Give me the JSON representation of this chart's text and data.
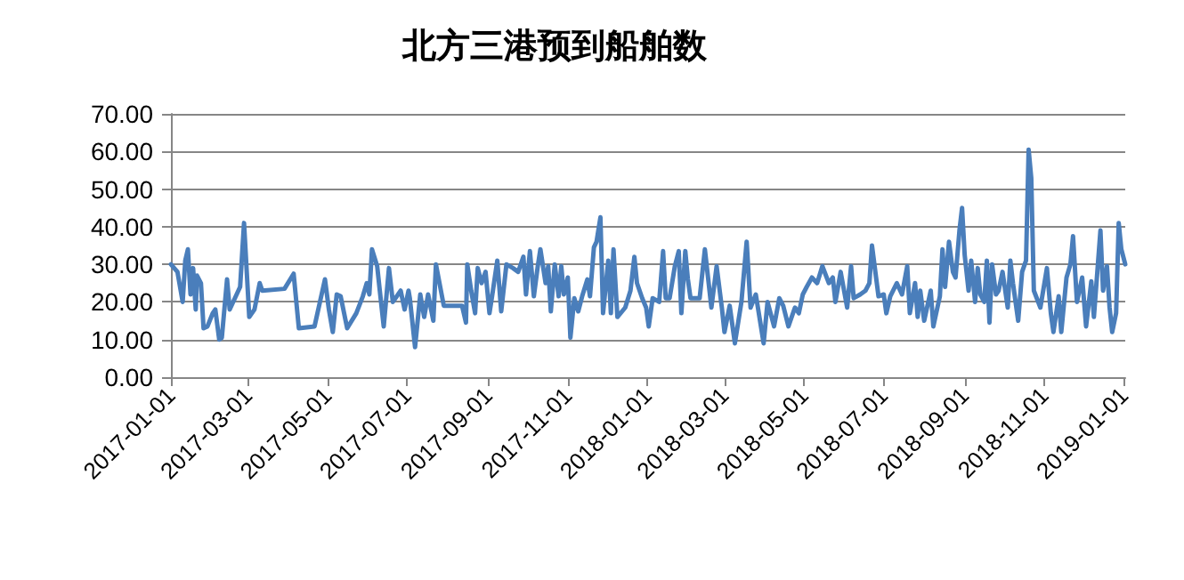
{
  "chart_data": {
    "type": "line",
    "title": "北方三港预到船舶数",
    "color": "#4a7ebb",
    "marker": "none",
    "line_style": "solid",
    "grid": "y",
    "x": [
      "2017-01-01",
      "2017-01-06",
      "2017-01-10",
      "2017-01-12",
      "2017-01-14",
      "2017-01-16",
      "2017-01-18",
      "2017-01-20",
      "2017-01-21",
      "2017-01-24",
      "2017-01-26",
      "2017-01-29",
      "2017-02-02",
      "2017-02-04",
      "2017-02-07",
      "2017-02-09",
      "2017-02-13",
      "2017-02-15",
      "2017-02-19",
      "2017-02-23",
      "2017-02-26",
      "2017-03-02",
      "2017-03-06",
      "2017-03-10",
      "2017-03-12",
      "2017-03-29",
      "2017-04-05",
      "2017-04-09",
      "2017-04-21",
      "2017-04-29",
      "2017-05-02",
      "2017-05-05",
      "2017-05-08",
      "2017-05-11",
      "2017-05-16",
      "2017-05-23",
      "2017-05-28",
      "2017-05-31",
      "2017-06-02",
      "2017-06-04",
      "2017-06-08",
      "2017-06-10",
      "2017-06-13",
      "2017-06-17",
      "2017-06-20",
      "2017-06-26",
      "2017-06-29",
      "2017-07-02",
      "2017-07-03",
      "2017-07-07",
      "2017-07-11",
      "2017-07-14",
      "2017-07-17",
      "2017-07-21",
      "2017-07-23",
      "2017-07-29",
      "2017-08-12",
      "2017-08-15",
      "2017-08-16",
      "2017-08-19",
      "2017-08-22",
      "2017-08-24",
      "2017-08-27",
      "2017-08-30",
      "2017-09-02",
      "2017-09-04",
      "2017-09-08",
      "2017-09-11",
      "2017-09-15",
      "2017-09-20",
      "2017-09-24",
      "2017-09-28",
      "2017-09-30",
      "2017-10-03",
      "2017-10-06",
      "2017-10-09",
      "2017-10-11",
      "2017-10-15",
      "2017-10-17",
      "2017-10-19",
      "2017-10-22",
      "2017-10-25",
      "2017-10-27",
      "2017-10-29",
      "2017-11-01",
      "2017-11-03",
      "2017-11-06",
      "2017-11-09",
      "2017-11-12",
      "2017-11-16",
      "2017-11-18",
      "2017-11-21",
      "2017-11-23",
      "2017-11-26",
      "2017-11-28",
      "2017-12-02",
      "2017-12-04",
      "2017-12-06",
      "2017-12-09",
      "2017-12-15",
      "2017-12-19",
      "2017-12-22",
      "2017-12-24",
      "2017-12-28",
      "2017-12-31",
      "2018-01-02",
      "2018-01-05",
      "2018-01-10",
      "2018-01-13",
      "2018-01-15",
      "2018-01-18",
      "2018-01-22",
      "2018-01-25",
      "2018-01-27",
      "2018-01-30",
      "2018-02-01",
      "2018-02-03",
      "2018-02-10",
      "2018-02-14",
      "2018-02-19",
      "2018-02-23",
      "2018-02-27",
      "2018-03-01",
      "2018-03-05",
      "2018-03-09",
      "2018-03-14",
      "2018-03-18",
      "2018-03-21",
      "2018-03-25",
      "2018-03-31",
      "2018-04-03",
      "2018-04-08",
      "2018-04-12",
      "2018-04-15",
      "2018-04-19",
      "2018-04-24",
      "2018-04-27",
      "2018-04-30",
      "2018-05-03",
      "2018-05-07",
      "2018-05-11",
      "2018-05-15",
      "2018-05-20",
      "2018-05-23",
      "2018-05-25",
      "2018-05-29",
      "2018-06-03",
      "2018-06-06",
      "2018-06-08",
      "2018-06-13",
      "2018-06-17",
      "2018-06-20",
      "2018-06-22",
      "2018-06-27",
      "2018-07-01",
      "2018-07-03",
      "2018-07-06",
      "2018-07-11",
      "2018-07-15",
      "2018-07-19",
      "2018-07-21",
      "2018-07-25",
      "2018-07-27",
      "2018-07-29",
      "2018-08-01",
      "2018-08-06",
      "2018-08-08",
      "2018-08-13",
      "2018-08-15",
      "2018-08-17",
      "2018-08-20",
      "2018-08-23",
      "2018-08-25",
      "2018-08-28",
      "2018-08-30",
      "2018-09-01",
      "2018-09-04",
      "2018-09-06",
      "2018-09-09",
      "2018-09-11",
      "2018-09-13",
      "2018-09-16",
      "2018-09-18",
      "2018-09-20",
      "2018-09-22",
      "2018-09-25",
      "2018-09-27",
      "2018-09-30",
      "2018-10-04",
      "2018-10-06",
      "2018-10-08",
      "2018-10-12",
      "2018-10-15",
      "2018-10-18",
      "2018-10-20",
      "2018-10-22",
      "2018-10-24",
      "2018-10-29",
      "2018-11-03",
      "2018-11-06",
      "2018-11-08",
      "2018-11-12",
      "2018-11-14",
      "2018-11-18",
      "2018-11-21",
      "2018-11-23",
      "2018-11-26",
      "2018-11-30",
      "2018-12-03",
      "2018-12-07",
      "2018-12-09",
      "2018-12-14",
      "2018-12-16",
      "2018-12-19",
      "2018-12-21",
      "2018-12-23",
      "2018-12-26",
      "2018-12-28",
      "2018-12-30",
      "2019-01-02"
    ],
    "values": [
      30,
      28,
      20,
      31,
      34,
      22,
      29,
      18,
      27,
      25,
      13,
      13.5,
      17,
      18,
      10,
      10.5,
      26,
      18,
      21,
      24,
      41,
      16,
      18,
      25,
      23,
      23.5,
      27.5,
      13,
      13.5,
      26,
      18,
      12,
      22,
      21.5,
      13,
      17,
      21.5,
      25,
      22,
      34,
      29.5,
      23,
      13.5,
      29,
      20,
      23,
      18,
      23,
      21,
      8,
      22,
      16,
      22,
      15,
      30,
      19,
      19,
      14.5,
      30,
      23,
      17,
      29,
      25,
      28,
      17,
      21.5,
      31,
      17.5,
      30,
      29,
      28,
      32,
      22,
      33.5,
      21.5,
      29.5,
      34,
      25,
      29.5,
      17.5,
      30,
      21.5,
      29.5,
      22,
      26.5,
      10.5,
      21,
      17.5,
      21.5,
      26,
      21.5,
      34.5,
      36,
      42.5,
      17,
      31,
      17,
      34,
      16,
      18.5,
      23,
      32,
      25,
      21,
      18.5,
      13.5,
      21,
      20,
      33.5,
      21,
      21,
      29.5,
      33.5,
      17,
      33.5,
      26,
      21,
      21,
      34,
      18.5,
      29.5,
      18.5,
      12,
      19,
      9,
      20,
      36,
      18.5,
      22,
      9,
      20,
      13.5,
      21,
      19,
      13.5,
      18.5,
      17,
      22,
      24,
      26.5,
      25,
      29.5,
      25,
      26.5,
      20,
      28,
      18.5,
      29.5,
      21,
      22,
      23,
      25,
      35,
      21.5,
      22,
      17,
      21.5,
      25,
      22,
      29.5,
      17,
      25,
      16,
      23,
      15,
      23,
      13.5,
      21.5,
      34,
      24,
      36,
      28,
      26.5,
      39,
      45,
      32.5,
      23,
      31,
      20,
      29,
      22,
      20,
      31,
      14.5,
      30,
      22,
      23,
      28,
      18.5,
      31,
      25,
      15,
      28,
      31,
      60.5,
      53,
      23,
      18.5,
      29,
      17,
      12,
      21.5,
      12,
      26.5,
      30,
      37.5,
      20,
      26.5,
      13.5,
      25.5,
      16,
      39,
      23,
      29.5,
      18.5,
      12,
      17,
      41,
      34,
      30
    ],
    "xlim": [
      "2017-01-01",
      "2019-01-02"
    ],
    "xticks": [
      "2017-01-01",
      "2017-03-01",
      "2017-05-01",
      "2017-07-01",
      "2017-09-01",
      "2017-11-01",
      "2018-01-01",
      "2018-03-01",
      "2018-05-01",
      "2018-07-01",
      "2018-09-01",
      "2018-11-01",
      "2019-01-01"
    ],
    "ylim": [
      0,
      70
    ],
    "yticks": [
      {
        "value": 0,
        "label": "0.00"
      },
      {
        "value": 10,
        "label": "10.00"
      },
      {
        "value": 20,
        "label": "20.00"
      },
      {
        "value": 30,
        "label": "30.00"
      },
      {
        "value": 40,
        "label": "40.00"
      },
      {
        "value": 50,
        "label": "50.00"
      },
      {
        "value": 60,
        "label": "60.00"
      },
      {
        "value": 70,
        "label": "70.00"
      }
    ]
  }
}
